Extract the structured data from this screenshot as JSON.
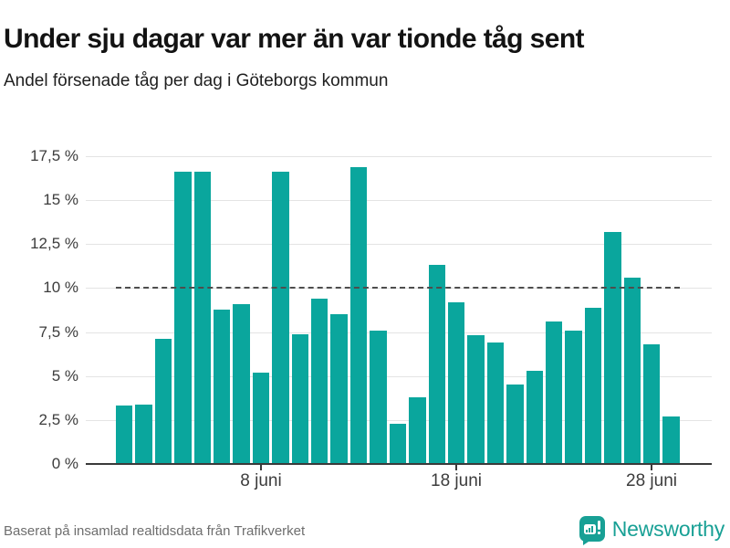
{
  "header": {
    "title": "Under sju dagar var mer än var tionde tåg sent",
    "subtitle": "Andel försenade tåg per dag i Göteborgs kommun"
  },
  "footer": {
    "source": "Baserat på insamlad realtidsdata från Trafikverket",
    "brand_name": "Newsworthy",
    "brand_icon": "newsworthy-speech-bubble-bar-chart-logo"
  },
  "colors": {
    "bar": "#0aa69d",
    "reference_line": "#4d4d4d",
    "axis_line": "#3a3a3a",
    "gridline": "#e4e4e4",
    "title_text": "#131313",
    "subtitle_text": "#1f1f1f",
    "tick_text": "#3c3c3c",
    "source_text": "#6e6e6e",
    "brand": "#18a095"
  },
  "chart_data": {
    "type": "bar",
    "title": "Under sju dagar var mer än var tionde tåg sent",
    "subtitle": "Andel försenade tåg per dag i Göteborgs kommun",
    "unit": "%",
    "categories": [
      "1 juni",
      "2 juni",
      "3 juni",
      "4 juni",
      "5 juni",
      "6 juni",
      "7 juni",
      "8 juni",
      "9 juni",
      "10 juni",
      "11 juni",
      "12 juni",
      "13 juni",
      "14 juni",
      "15 juni",
      "16 juni",
      "17 juni",
      "18 juni",
      "19 juni",
      "20 juni",
      "21 juni",
      "22 juni",
      "23 juni",
      "24 juni",
      "25 juni",
      "26 juni",
      "27 juni",
      "28 juni",
      "29 juni"
    ],
    "values": [
      3.3,
      3.4,
      7.1,
      16.6,
      16.6,
      8.8,
      9.1,
      5.2,
      16.6,
      7.4,
      9.4,
      8.5,
      16.9,
      7.6,
      2.3,
      3.8,
      11.3,
      9.2,
      7.3,
      6.9,
      4.5,
      5.3,
      8.1,
      7.6,
      8.9,
      13.2,
      10.6,
      6.8,
      2.7
    ],
    "ylim": [
      0,
      17.5
    ],
    "yticks": [
      {
        "value": 0,
        "label": "0 %"
      },
      {
        "value": 2.5,
        "label": "2,5 %"
      },
      {
        "value": 5,
        "label": "5 %"
      },
      {
        "value": 7.5,
        "label": "7,5 %"
      },
      {
        "value": 10,
        "label": "10 %"
      },
      {
        "value": 12.5,
        "label": "12,5 %"
      },
      {
        "value": 15,
        "label": "15 %"
      },
      {
        "value": 17.5,
        "label": "17,5 %"
      }
    ],
    "xticks": [
      {
        "index": 7,
        "label": "8 juni"
      },
      {
        "index": 17,
        "label": "18 juni"
      },
      {
        "index": 27,
        "label": "28 juni"
      }
    ],
    "reference_line": {
      "value": 10,
      "style": "dashed"
    },
    "grid": true,
    "legend_position": "none"
  }
}
